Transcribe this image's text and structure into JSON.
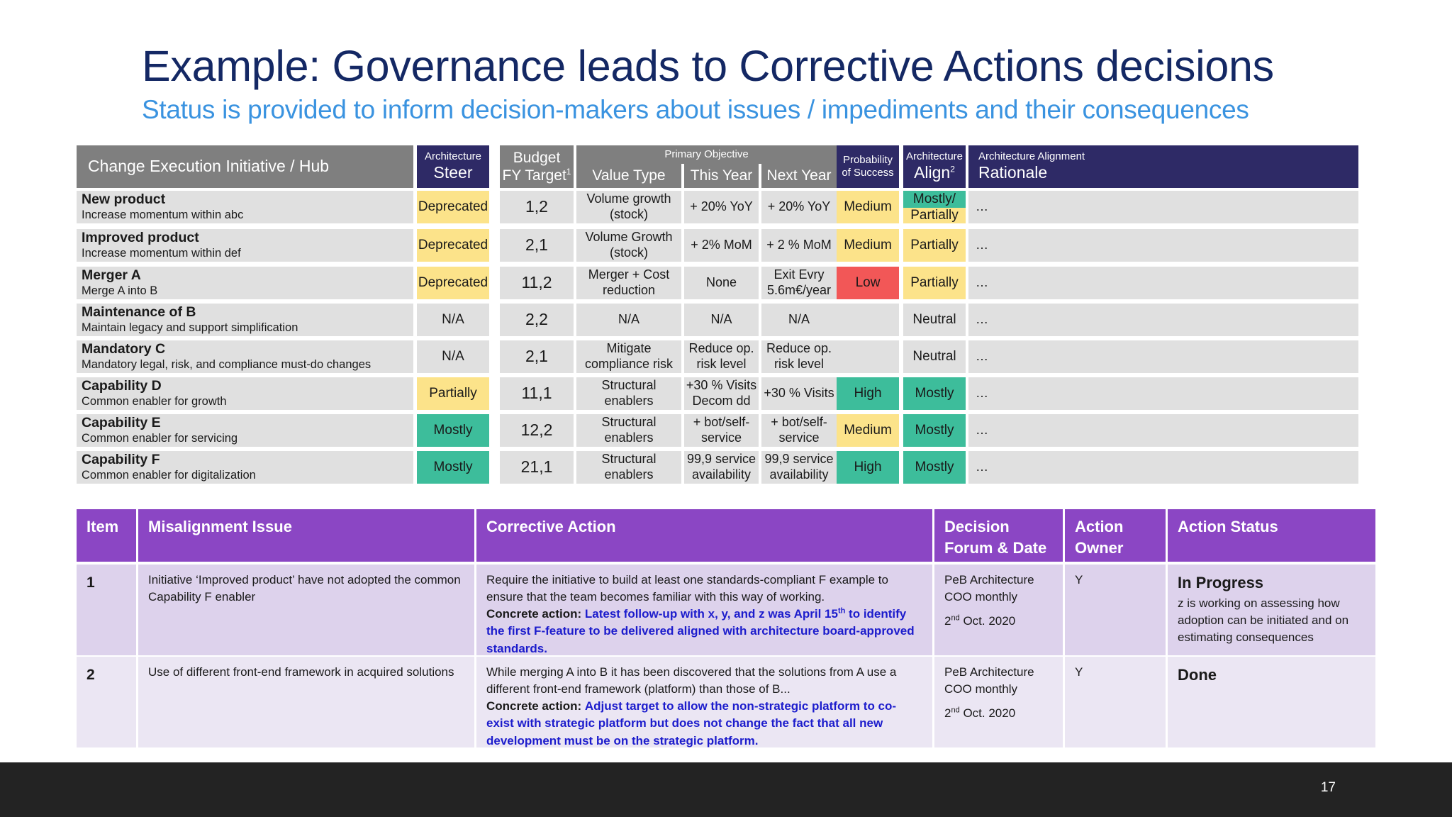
{
  "title": "Example: Governance leads to Corrective Actions decisions",
  "subtitle": "Status is provided to inform decision-makers about issues / impediments and their consequences",
  "status_table": {
    "header": {
      "initiative": "Change Execution Initiative / Hub",
      "steer_top": "Architecture",
      "steer_main": "Steer",
      "budget_top": "Budget",
      "budget_main": "FY Target",
      "budget_sup": "1",
      "objective_top": "Primary Objective",
      "value_type": "Value Type",
      "this_year": "This Year",
      "next_year": "Next Year",
      "prob_top": "Probability",
      "prob_bottom": "of Success",
      "align_top": "Architecture",
      "align_main": "Align",
      "align_sup": "2",
      "rationale_top": "Architecture Alignment",
      "rationale_main": "Rationale"
    },
    "rows": [
      {
        "name": "New product",
        "desc": "Increase momentum within abc",
        "steer": "Deprecated",
        "budget": "1,2",
        "value_type": "Volume growth (stock)",
        "this_year": "+ 20% YoY",
        "next_year": "+ 20% YoY",
        "probability": "Medium",
        "align_top": "Mostly/",
        "align_bottom": "Partially",
        "rationale": "…"
      },
      {
        "name": "Improved product",
        "desc": "Increase momentum within def",
        "steer": "Deprecated",
        "budget": "2,1",
        "value_type": "Volume Growth (stock)",
        "this_year": "+ 2% MoM",
        "next_year": "+ 2 % MoM",
        "probability": "Medium",
        "align": "Partially",
        "rationale": "…"
      },
      {
        "name": "Merger A",
        "desc": "Merge A into B",
        "steer": "Deprecated",
        "budget": "11,2",
        "value_type": "Merger + Cost reduction",
        "this_year": "None",
        "next_year": "Exit Evry 5.6m€/year",
        "probability": "Low",
        "align": "Partially",
        "rationale": "…"
      },
      {
        "name": "Maintenance of B",
        "desc": "Maintain legacy and support simplification",
        "steer": "N/A",
        "budget": "2,2",
        "value_type": "N/A",
        "this_year": "N/A",
        "next_year": "N/A",
        "probability": "",
        "align": "Neutral",
        "rationale": "…"
      },
      {
        "name": "Mandatory C",
        "desc": "Mandatory legal, risk, and compliance must-do changes",
        "steer": "N/A",
        "budget": "2,1",
        "value_type": "Mitigate compliance risk",
        "this_year": "Reduce op. risk level",
        "next_year": "Reduce op. risk level",
        "probability": "",
        "align": "Neutral",
        "rationale": "…"
      },
      {
        "name": "Capability D",
        "desc": "Common enabler for growth",
        "steer": "Partially",
        "budget": "11,1",
        "value_type": "Structural enablers",
        "this_year": "+30 % Visits Decom dd",
        "next_year": "+30 % Visits",
        "probability": "High",
        "align": "Mostly",
        "rationale": "…"
      },
      {
        "name": "Capability E",
        "desc": "Common enabler for servicing",
        "steer": "Mostly",
        "budget": "12,2",
        "value_type": "Structural enablers",
        "this_year": "+ bot/self-service",
        "next_year": "+ bot/self-service",
        "probability": "Medium",
        "align": "Mostly",
        "rationale": "…"
      },
      {
        "name": "Capability F",
        "desc": "Common enabler for digitalization",
        "steer": "Mostly",
        "budget": "21,1",
        "value_type": "Structural enablers",
        "this_year": "99,9 service availability",
        "next_year": "99,9 service availability",
        "probability": "High",
        "align": "Mostly",
        "rationale": "…"
      }
    ]
  },
  "actions_table": {
    "headers": {
      "item": "Item",
      "issue": "Misalignment Issue",
      "action": "Corrective Action",
      "forum_line1": "Decision",
      "forum_line2": "Forum & Date",
      "owner_line1": "Action",
      "owner_line2": "Owner",
      "status": "Action Status"
    },
    "rows": [
      {
        "item": "1",
        "issue": "Initiative ‘Improved product’ have not adopted the common Capability F enabler",
        "action_text": "Require the initiative to build at least one standards-compliant F example to ensure that the team becomes familiar with this way of working.",
        "action_label": "Concrete action:",
        "action_detail_a": "Latest follow-up with x, y, and z was April 15",
        "action_detail_sup": "th",
        "action_detail_b": " to identify the first F-feature to be delivered aligned with architecture board-approved standards.",
        "forum": "PeB Architecture COO monthly",
        "date_day": "2",
        "date_sup": "nd",
        "date_rest": " Oct. 2020",
        "owner": "Y",
        "status_title": "In Progress",
        "status_detail": "z is working on assessing how adoption can be initiated and on estimating consequences"
      },
      {
        "item": "2",
        "issue": "Use of different front-end framework in acquired solutions",
        "action_text": "While merging A into B it has been discovered that the solutions from A use a different front-end framework (platform) than those of B...",
        "action_label": "Concrete action:",
        "action_detail": "Adjust target to allow the non-strategic platform to co-exist with strategic platform but does not change the fact that all new development must be on the strategic platform.",
        "forum": "PeB Architecture COO monthly",
        "date_day": "2",
        "date_sup": "nd",
        "date_rest": " Oct. 2020",
        "owner": "Y",
        "status_title": "Done",
        "status_detail": ""
      }
    ]
  },
  "page_number": "17",
  "colors": {
    "title": "#142864",
    "subtitle": "#3a93e0",
    "header_grey": "#7f7f7f",
    "header_dark": "#2e2a66",
    "header_purple": "#8b46c4",
    "yellow": "#fce38a",
    "teal": "#3dbd9b",
    "red": "#f25757",
    "grey_cell": "#e0e0e0",
    "action_blue": "#1c1ccc"
  }
}
